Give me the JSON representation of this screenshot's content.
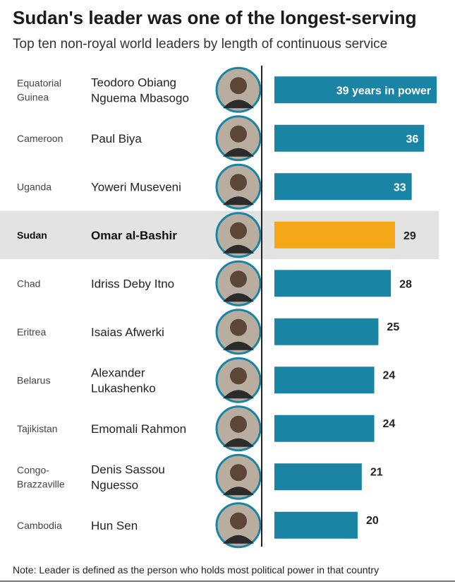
{
  "title": "Sudan's leader was one of the longest-serving",
  "subtitle": "Top ten non-royal world leaders by length of continuous service",
  "footnote": "Note: Leader is defined as the person who holds most political power in that country",
  "colors": {
    "bar": "#1a84a4",
    "highlight": "#f5a817",
    "highlight_row_bg": "#e3e3e3",
    "text": "#333333"
  },
  "chart_data": {
    "type": "bar",
    "orientation": "horizontal",
    "categories": [
      {
        "country": [
          "Equatorial",
          "Guinea"
        ],
        "leader": [
          "Teodoro Obiang",
          "Nguema Mbasogo"
        ]
      },
      {
        "country": [
          "Cameroon"
        ],
        "leader": [
          "Paul Biya"
        ]
      },
      {
        "country": [
          "Uganda"
        ],
        "leader": [
          "Yoweri Museveni"
        ]
      },
      {
        "country": [
          "Sudan"
        ],
        "leader": [
          "Omar al-Bashir"
        ]
      },
      {
        "country": [
          "Chad"
        ],
        "leader": [
          "Idriss Deby Itno"
        ]
      },
      {
        "country": [
          "Eritrea"
        ],
        "leader": [
          "Isaias Afwerki"
        ]
      },
      {
        "country": [
          "Belarus"
        ],
        "leader": [
          "Alexander",
          "Lukashenko"
        ]
      },
      {
        "country": [
          "Tajikistan"
        ],
        "leader": [
          "Emomali Rahmon"
        ]
      },
      {
        "country": [
          "Congo-",
          "Brazzaville"
        ],
        "leader": [
          "Denis Sassou",
          "Nguesso"
        ]
      },
      {
        "country": [
          "Cambodia"
        ],
        "leader": [
          "Hun Sen"
        ]
      }
    ],
    "values": [
      39,
      36,
      33,
      29,
      28,
      25,
      24,
      24,
      21,
      20
    ],
    "value_labels": [
      "39 years in power",
      "36",
      "33",
      "29",
      "28",
      "25",
      "24",
      "24",
      "21",
      "20"
    ],
    "highlight_index": 3,
    "xlim": [
      0,
      39
    ],
    "unit": "years in power",
    "grid": false,
    "legend": "none"
  }
}
